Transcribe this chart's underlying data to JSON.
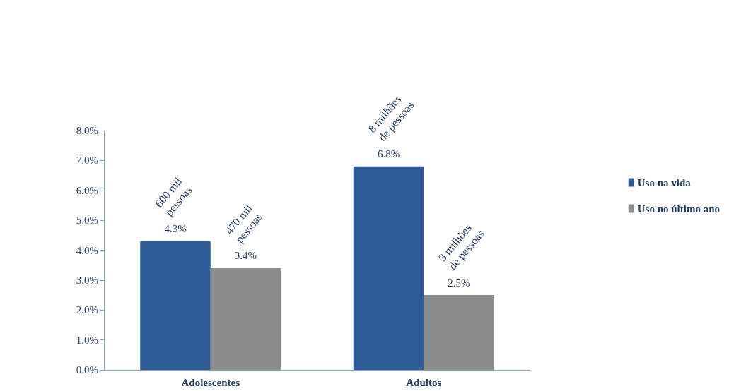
{
  "chart_data": {
    "type": "bar",
    "categories": [
      "Adolescentes",
      "Adultos"
    ],
    "series": [
      {
        "name": "Uso na vida",
        "color": "#2e5b97",
        "values": [
          4.3,
          6.8
        ],
        "value_labels": [
          "4.3%",
          "6.8%"
        ]
      },
      {
        "name": "Uso no último ano",
        "color": "#8c8c8c",
        "values": [
          3.4,
          2.5
        ],
        "value_labels": [
          "3.4%",
          "2.5%"
        ]
      }
    ],
    "ylim": [
      0,
      8
    ],
    "yticks": [
      {
        "value": 0,
        "label": "0.0%"
      },
      {
        "value": 1,
        "label": "1.0%"
      },
      {
        "value": 2,
        "label": "2.0%"
      },
      {
        "value": 3,
        "label": "3.0%"
      },
      {
        "value": 4,
        "label": "4.0%"
      },
      {
        "value": 5,
        "label": "5.0%"
      },
      {
        "value": 6,
        "label": "6.0%"
      },
      {
        "value": 7,
        "label": "7.0%"
      },
      {
        "value": 8,
        "label": "8.0%"
      }
    ],
    "annotations": [
      {
        "text": "600 mil pessoas",
        "x": "Adolescentes",
        "y": 4.3
      },
      {
        "text": "470 mil pessoas",
        "x": "Adolescentes",
        "y": 3.4
      },
      {
        "text": "8 milhões de pessoas",
        "x": "Adultos",
        "y": 6.8
      },
      {
        "text": "3 milhões de pessoas",
        "x": "Adultos",
        "y": 2.5
      }
    ],
    "grid": false,
    "legend": "right"
  }
}
